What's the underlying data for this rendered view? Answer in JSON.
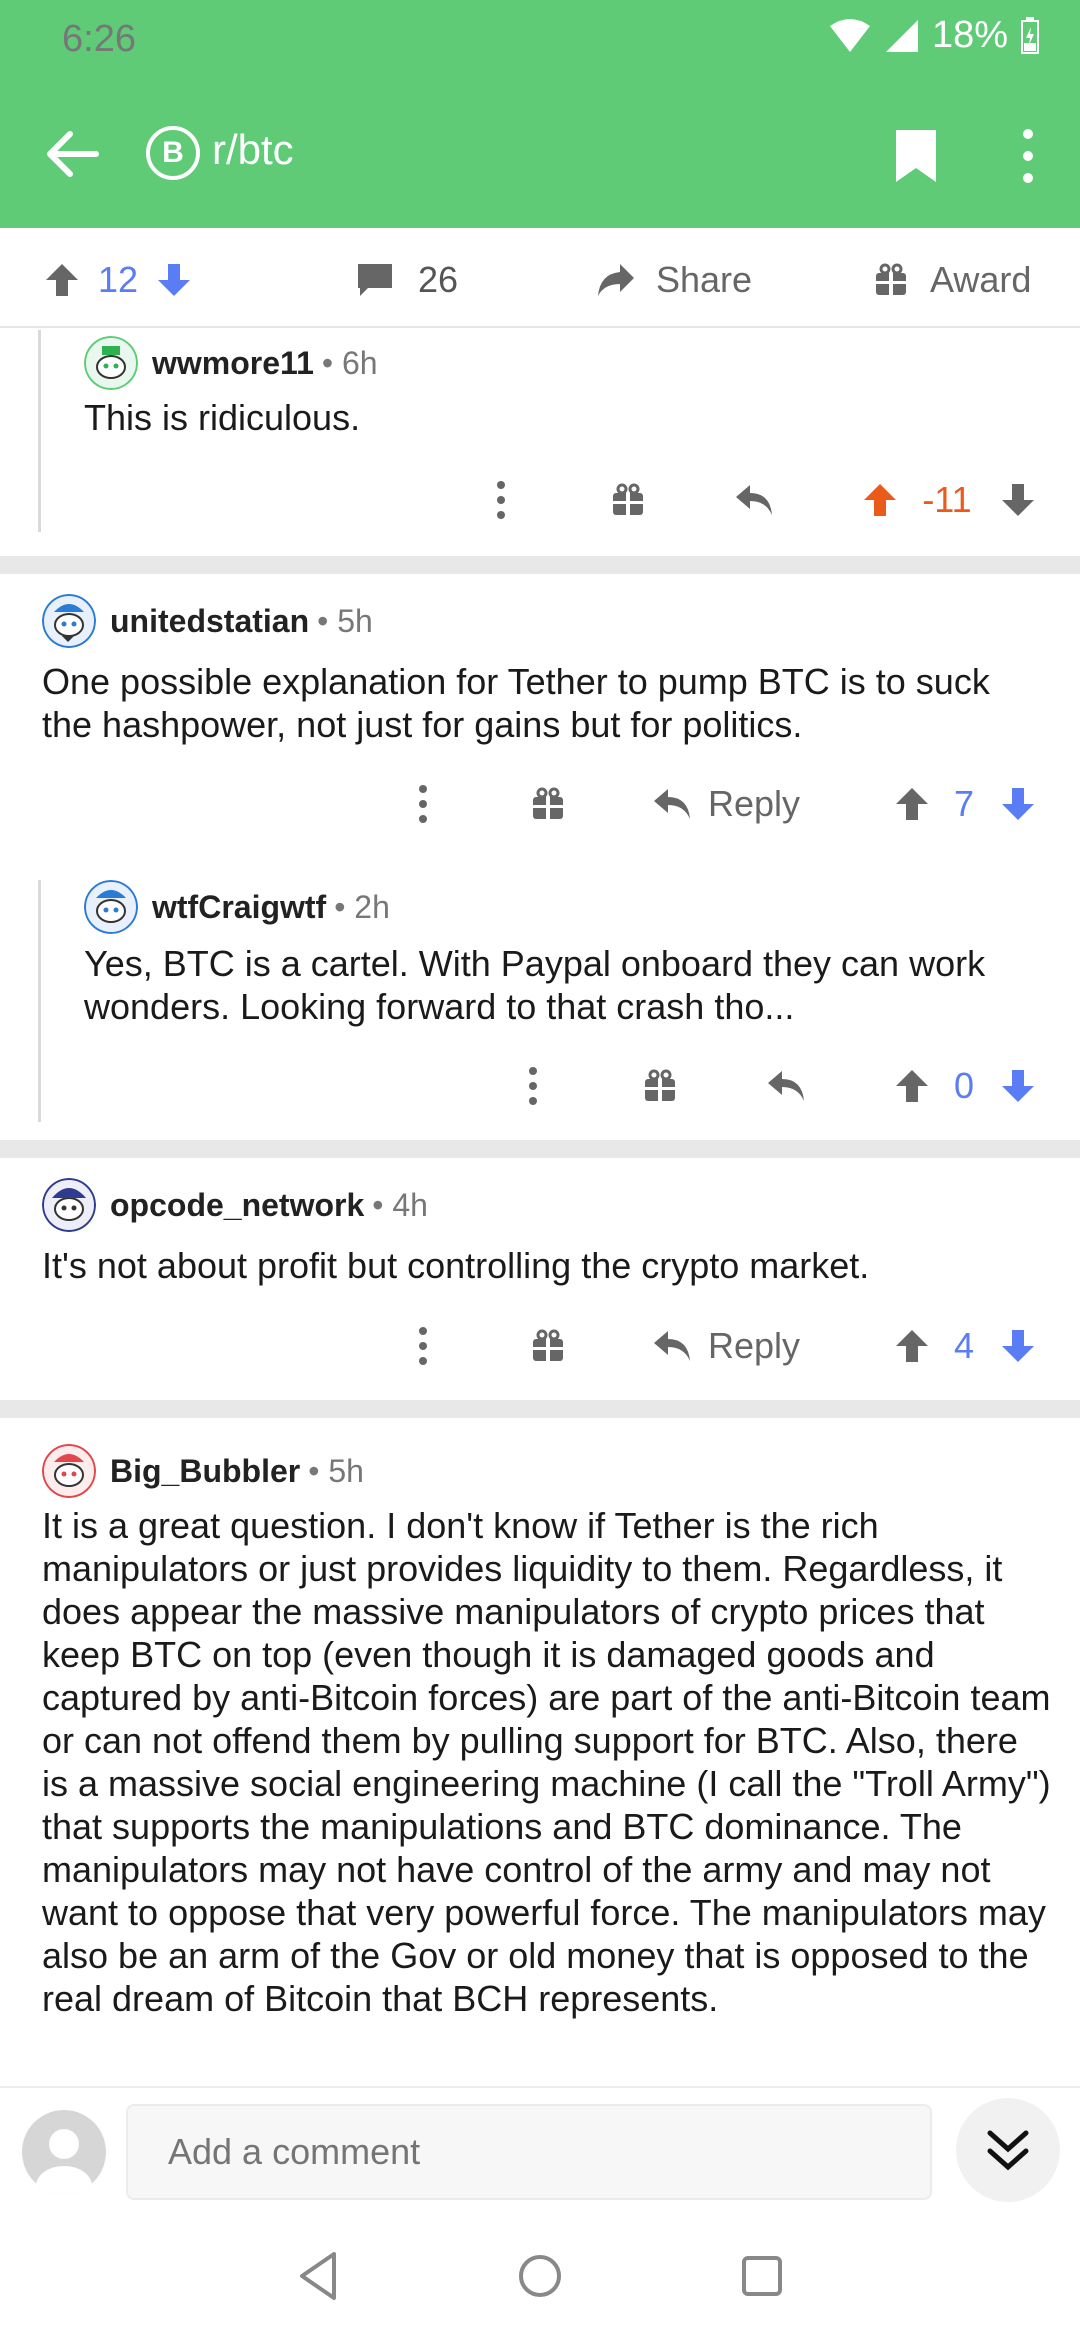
{
  "status_bar": {
    "time": "6:26",
    "battery": "18%"
  },
  "header": {
    "subreddit": "r/btc",
    "subreddit_icon_letter": "B"
  },
  "post_actions": {
    "score": "12",
    "comments": "26",
    "share_label": "Share",
    "award_label": "Award"
  },
  "comments": [
    {
      "author": "wwmore11",
      "time": "• 6h",
      "body": "This is ridiculous.",
      "score": "-11"
    },
    {
      "author": "unitedstatian",
      "time": "• 5h",
      "body": "One possible explanation for Tether to pump BTC is to suck the hashpower, not just for gains but for politics.",
      "reply_label": "Reply",
      "score": "7"
    },
    {
      "author": "wtfCraigwtf",
      "time": "• 2h",
      "body": "Yes, BTC is a cartel. With Paypal onboard they can work wonders. Looking forward to that crash tho...",
      "score": "0"
    },
    {
      "author": "opcode_network",
      "time": "• 4h",
      "body": "It's not about profit but controlling the crypto market.",
      "reply_label": "Reply",
      "score": "4"
    },
    {
      "author": "Big_Bubbler",
      "time": "• 5h",
      "body": "It is a great question. I don't know if Tether is the rich manipulators or just provides liquidity to them. Regardless, it does appear the massive manipulators of crypto prices that keep BTC on top (even though it is damaged goods and captured by anti-Bitcoin forces) are part of the anti-Bitcoin team or can not offend them by pulling support for BTC. Also, there is a massive social engineering machine (I call the \"Troll Army\") that supports the manipulations and BTC dominance. The manipulators may not have control of the army and may not want to oppose that very powerful force. The manipulators may also be an arm of the Gov or old money that is opposed to the real dream of Bitcoin that BCH represents."
    }
  ],
  "comment_bar": {
    "placeholder": "Add a comment"
  },
  "colors": {
    "brand_green": "#5fcb77",
    "upvote_orange": "#ea5a1b",
    "vote_blue": "#5a7df5"
  }
}
